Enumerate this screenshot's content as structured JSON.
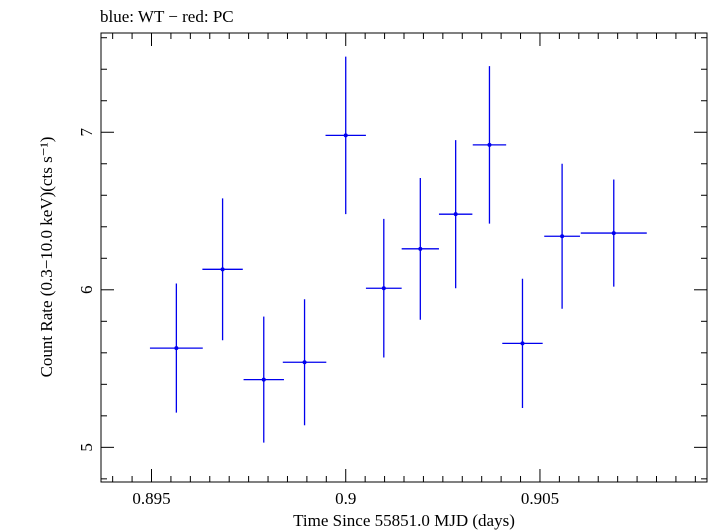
{
  "chart_data": {
    "type": "scatter",
    "title": "blue: WT − red: PC",
    "xlabel": "Time Since 55851.0 MJD (days)",
    "ylabel": "Count Rate (0.3−10.0 keV)(cts s⁻¹)",
    "xlim": [
      0.8937,
      0.9093
    ],
    "ylim": [
      4.78,
      7.63
    ],
    "x_ticks": [
      {
        "value": 0.895,
        "label": "0.895"
      },
      {
        "value": 0.9,
        "label": "0.9"
      },
      {
        "value": 0.905,
        "label": "0.905"
      }
    ],
    "y_ticks": [
      {
        "value": 5,
        "label": "5"
      },
      {
        "value": 6,
        "label": "6"
      },
      {
        "value": 7,
        "label": "7"
      }
    ],
    "grid": false,
    "series": [
      {
        "color": "#0000ee",
        "points": [
          {
            "x": 0.89564,
            "xerr": 0.00068,
            "y": 5.63,
            "yerr": 0.41
          },
          {
            "x": 0.89683,
            "xerr": 0.00052,
            "y": 6.13,
            "yerr": 0.45
          },
          {
            "x": 0.89789,
            "xerr": 0.00052,
            "y": 5.43,
            "yerr": 0.4
          },
          {
            "x": 0.89894,
            "xerr": 0.00056,
            "y": 5.54,
            "yerr": 0.4
          },
          {
            "x": 0.9,
            "xerr": 0.00052,
            "y": 6.98,
            "yerr": 0.5
          },
          {
            "x": 0.90098,
            "xerr": 0.00046,
            "y": 6.01,
            "yerr": 0.44
          },
          {
            "x": 0.90192,
            "xerr": 0.00048,
            "y": 6.26,
            "yerr": 0.45
          },
          {
            "x": 0.90283,
            "xerr": 0.00043,
            "y": 6.48,
            "yerr": 0.47
          },
          {
            "x": 0.9037,
            "xerr": 0.00043,
            "y": 6.92,
            "yerr": 0.5
          },
          {
            "x": 0.90455,
            "xerr": 0.00052,
            "y": 5.66,
            "yerr": 0.41
          },
          {
            "x": 0.90557,
            "xerr": 0.00046,
            "y": 6.34,
            "yerr": 0.46
          },
          {
            "x": 0.9069,
            "xerr": 0.00085,
            "y": 6.36,
            "yerr": 0.34
          }
        ]
      }
    ]
  }
}
